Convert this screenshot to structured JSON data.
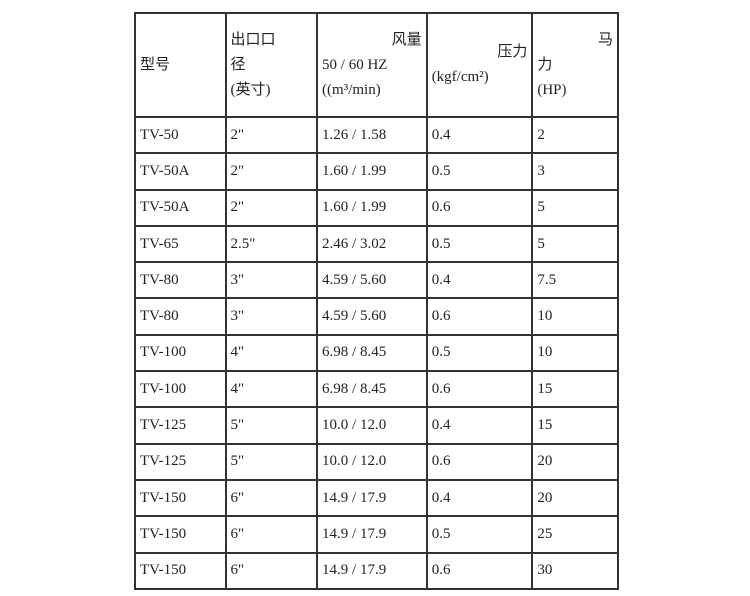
{
  "headers": [
    {
      "lines": [
        "型号"
      ]
    },
    {
      "lines": [
        "出口口",
        "径",
        "(英寸)"
      ]
    },
    {
      "lines": [
        "风量",
        "50 / 60 HZ",
        "((m³/min)"
      ]
    },
    {
      "lines": [
        "压力",
        "(kgf/cm²)"
      ]
    },
    {
      "lines": [
        "马",
        "力",
        "(HP)"
      ]
    }
  ],
  "rows": [
    [
      "TV-50",
      "2\"",
      "1.26 / 1.58",
      "0.4",
      "2"
    ],
    [
      "TV-50A",
      "2\"",
      "1.60 / 1.99",
      "0.5",
      "3"
    ],
    [
      "TV-50A",
      "2\"",
      "1.60 / 1.99",
      "0.6",
      "5"
    ],
    [
      "TV-65",
      "2.5\"",
      "2.46 / 3.02",
      "0.5",
      "5"
    ],
    [
      "TV-80",
      "3\"",
      "4.59 / 5.60",
      "0.4",
      "7.5"
    ],
    [
      "TV-80",
      "3\"",
      "4.59 / 5.60",
      "0.6",
      "10"
    ],
    [
      "TV-100",
      "4\"",
      "6.98 / 8.45",
      "0.5",
      "10"
    ],
    [
      "TV-100",
      "4\"",
      "6.98 / 8.45",
      "0.6",
      "15"
    ],
    [
      "TV-125",
      "5\"",
      "10.0 / 12.0",
      "0.4",
      "15"
    ],
    [
      "TV-125",
      "5\"",
      "10.0 / 12.0",
      "0.6",
      "20"
    ],
    [
      "TV-150",
      "6\"",
      "14.9 / 17.9",
      "0.4",
      "20"
    ],
    [
      "TV-150",
      "6\"",
      "14.9 / 17.9",
      "0.5",
      "25"
    ],
    [
      "TV-150",
      "6\"",
      "14.9 / 17.9",
      "0.6",
      "30"
    ]
  ]
}
